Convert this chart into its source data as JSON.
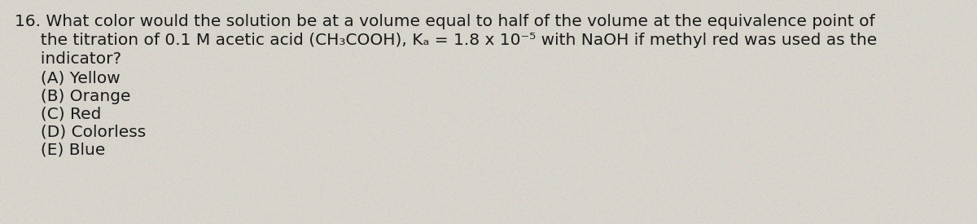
{
  "background_color": "#d8d4cc",
  "text_color": "#1a1a1a",
  "line1": "16. What color would the solution be at a volume equal to half of the volume at the equivalence point of",
  "line2": "     the titration of 0.1 M acetic acid (CH₃COOH), Kₐ = 1.8 x 10⁻⁵ with NaOH if methyl red was used as the",
  "line3": "     indicator?",
  "choices": [
    "     (A) Yellow",
    "     (B) Orange",
    "     (C) Red",
    "     (D) Colorless",
    "     (E) Blue"
  ],
  "font_size": 14.5,
  "font_family": "DejaVu Sans"
}
